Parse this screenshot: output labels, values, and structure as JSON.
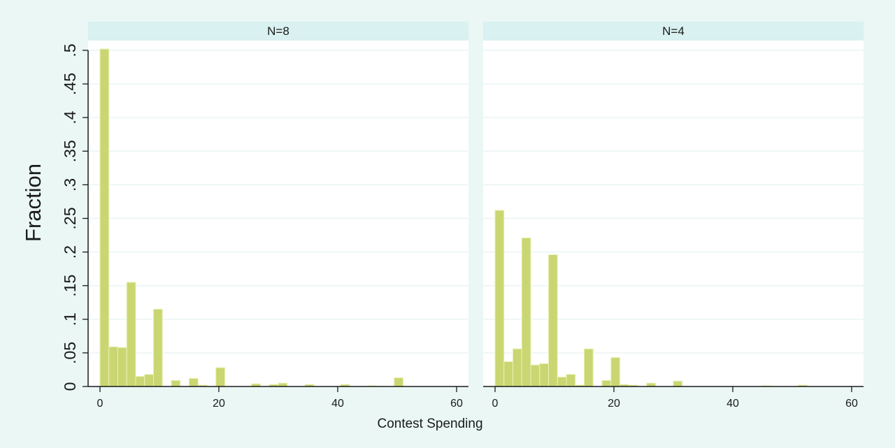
{
  "chart_data": {
    "type": "bar",
    "xlabel": "Contest Spending",
    "ylabel": "Fraction",
    "xlim": [
      -2,
      62
    ],
    "ylim": [
      0,
      0.5
    ],
    "x_ticks": [
      0,
      20,
      40,
      60
    ],
    "x_tick_labels": [
      "0",
      "20",
      "40",
      "60"
    ],
    "y_ticks": [
      0,
      0.05,
      0.1,
      0.15,
      0.2,
      0.25,
      0.3,
      0.35,
      0.4,
      0.45,
      0.5
    ],
    "y_tick_labels": [
      "0",
      ".05",
      ".1",
      ".15",
      ".2",
      ".25",
      ".3",
      ".35",
      ".4",
      ".45",
      ".5"
    ],
    "grid": true,
    "bin_width": 1.5,
    "colors": {
      "bar": "#cad672",
      "bar_edge": "#e9f1b4",
      "strip": "#d9f1f0",
      "axis": "#1a1a1a",
      "grid": "#eaf5f3",
      "background": "#eaf7f5",
      "plot_bg": "#ffffff"
    },
    "panels": [
      {
        "title": "N=8",
        "bins": [
          {
            "x": 0,
            "value": 0.502
          },
          {
            "x": 1.5,
            "value": 0.059
          },
          {
            "x": 3,
            "value": 0.058
          },
          {
            "x": 4.5,
            "value": 0.155
          },
          {
            "x": 6,
            "value": 0.015
          },
          {
            "x": 7.5,
            "value": 0.018
          },
          {
            "x": 9,
            "value": 0.115
          },
          {
            "x": 12,
            "value": 0.009
          },
          {
            "x": 15,
            "value": 0.012
          },
          {
            "x": 16.5,
            "value": 0.002
          },
          {
            "x": 19.5,
            "value": 0.028
          },
          {
            "x": 25.5,
            "value": 0.004
          },
          {
            "x": 28.5,
            "value": 0.003
          },
          {
            "x": 30,
            "value": 0.005
          },
          {
            "x": 34.5,
            "value": 0.003
          },
          {
            "x": 40.5,
            "value": 0.003
          },
          {
            "x": 45,
            "value": 0.001
          },
          {
            "x": 49.5,
            "value": 0.013
          }
        ]
      },
      {
        "title": "N=4",
        "bins": [
          {
            "x": 0,
            "value": 0.262
          },
          {
            "x": 1.5,
            "value": 0.037
          },
          {
            "x": 3,
            "value": 0.056
          },
          {
            "x": 4.5,
            "value": 0.221
          },
          {
            "x": 6,
            "value": 0.032
          },
          {
            "x": 7.5,
            "value": 0.034
          },
          {
            "x": 9,
            "value": 0.196
          },
          {
            "x": 10.5,
            "value": 0.014
          },
          {
            "x": 12,
            "value": 0.018
          },
          {
            "x": 13.5,
            "value": 0.002
          },
          {
            "x": 15,
            "value": 0.056
          },
          {
            "x": 18,
            "value": 0.009
          },
          {
            "x": 19.5,
            "value": 0.043
          },
          {
            "x": 21,
            "value": 0.003
          },
          {
            "x": 22.5,
            "value": 0.002
          },
          {
            "x": 25.5,
            "value": 0.005
          },
          {
            "x": 30,
            "value": 0.008
          },
          {
            "x": 45,
            "value": 0.001
          },
          {
            "x": 51,
            "value": 0.002
          }
        ]
      }
    ]
  }
}
